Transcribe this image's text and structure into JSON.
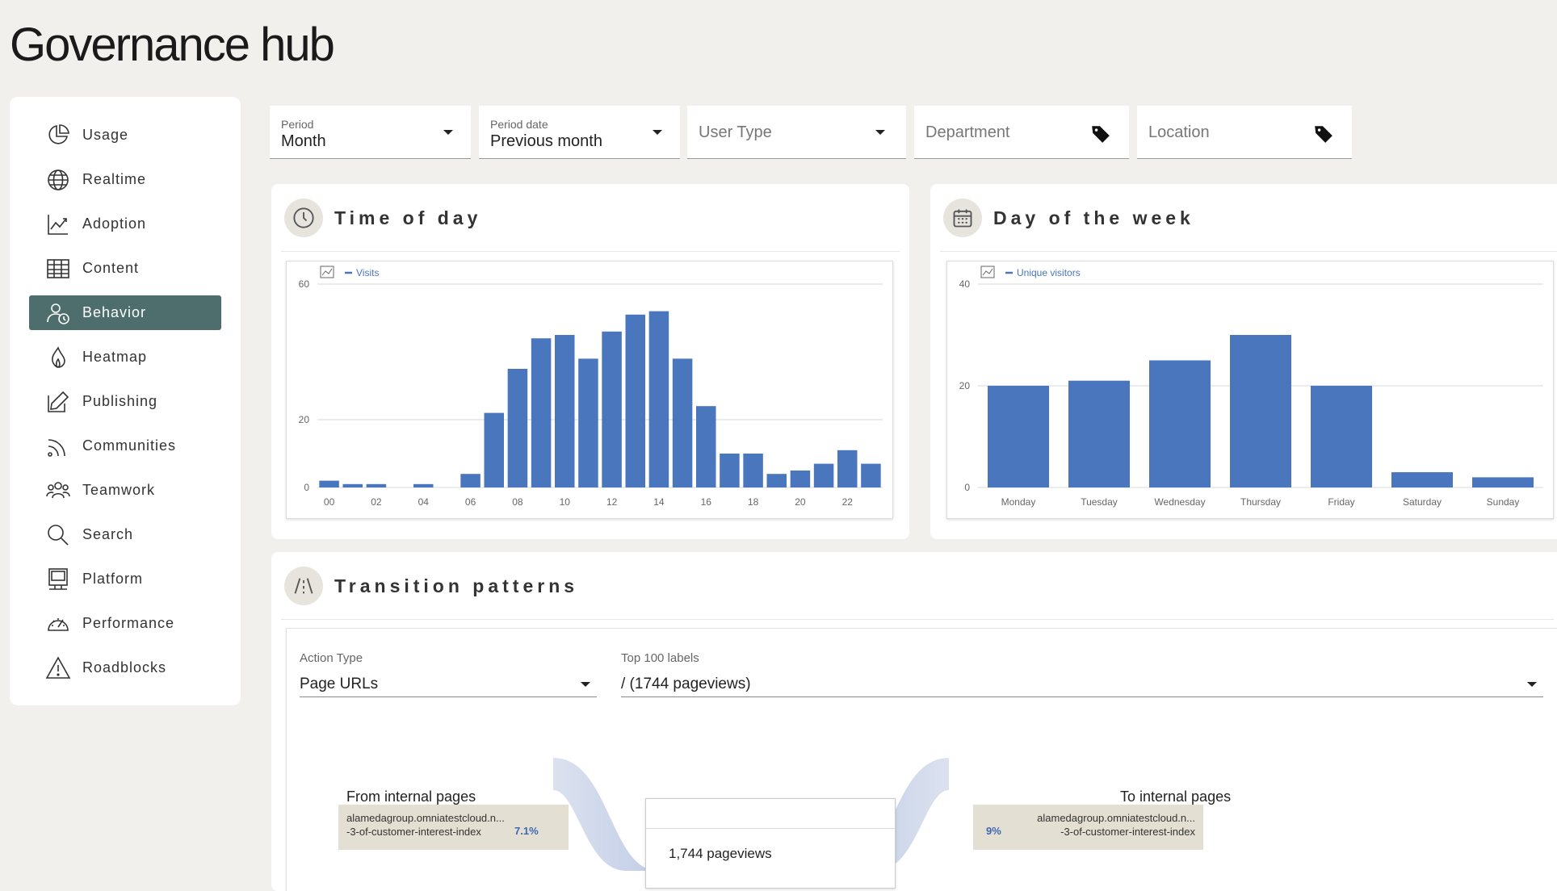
{
  "app": {
    "title": "Governance hub"
  },
  "sidebar": {
    "items": [
      {
        "label": "Usage",
        "icon": "pie-chart-icon",
        "active": false
      },
      {
        "label": "Realtime",
        "icon": "globe-icon",
        "active": false
      },
      {
        "label": "Adoption",
        "icon": "trend-chart-icon",
        "active": false
      },
      {
        "label": "Content",
        "icon": "table-icon",
        "active": false
      },
      {
        "label": "Behavior",
        "icon": "user-clock-icon",
        "active": true
      },
      {
        "label": "Heatmap",
        "icon": "flame-icon",
        "active": false
      },
      {
        "label": "Publishing",
        "icon": "edit-icon",
        "active": false
      },
      {
        "label": "Communities",
        "icon": "rss-icon",
        "active": false
      },
      {
        "label": "Teamwork",
        "icon": "group-icon",
        "active": false
      },
      {
        "label": "Search",
        "icon": "search-icon",
        "active": false
      },
      {
        "label": "Platform",
        "icon": "monitor-icon",
        "active": false
      },
      {
        "label": "Performance",
        "icon": "gauge-icon",
        "active": false
      },
      {
        "label": "Roadblocks",
        "icon": "warning-icon",
        "active": false
      }
    ]
  },
  "filters": {
    "period": {
      "label": "Period",
      "value": "Month"
    },
    "period_date": {
      "label": "Period date",
      "value": "Previous month"
    },
    "user_type": {
      "placeholder": "User Type"
    },
    "department": {
      "placeholder": "Department"
    },
    "location": {
      "placeholder": "Location"
    }
  },
  "time_of_day": {
    "title": "Time of day",
    "chart_data": {
      "type": "bar",
      "legend": "Visits",
      "categories": [
        "00",
        "01",
        "02",
        "03",
        "04",
        "05",
        "06",
        "07",
        "08",
        "09",
        "10",
        "11",
        "12",
        "13",
        "14",
        "15",
        "16",
        "17",
        "18",
        "19",
        "20",
        "21",
        "22",
        "23"
      ],
      "tick_labels": [
        "00",
        "02",
        "04",
        "06",
        "08",
        "10",
        "12",
        "14",
        "16",
        "18",
        "20",
        "22"
      ],
      "values": [
        2,
        1,
        1,
        0,
        1,
        0,
        4,
        22,
        35,
        44,
        45,
        38,
        46,
        51,
        52,
        38,
        24,
        10,
        10,
        4,
        5,
        7,
        11,
        7
      ],
      "y_ticks": [
        "0",
        "20",
        "60"
      ],
      "ylim": [
        0,
        60
      ],
      "color": "#4a76be"
    }
  },
  "day_of_week": {
    "title": "Day of the week",
    "chart_data": {
      "type": "bar",
      "legend": "Unique visitors",
      "categories": [
        "Monday",
        "Tuesday",
        "Wednesday",
        "Thursday",
        "Friday",
        "Saturday",
        "Sunday"
      ],
      "values": [
        20,
        21,
        25,
        30,
        20,
        3,
        2
      ],
      "y_ticks": [
        "0",
        "20",
        "40"
      ],
      "ylim": [
        0,
        40
      ],
      "color": "#4a76be"
    }
  },
  "transition": {
    "title": "Transition patterns",
    "action_type": {
      "label": "Action Type",
      "value": "Page URLs"
    },
    "top_labels": {
      "label": "Top 100 labels",
      "value": "/ (1744 pageviews)"
    },
    "from_title": "From internal pages",
    "to_title": "To internal pages",
    "from_item": {
      "url1": "alamedagroup.omniatestcloud.n...",
      "url2": "-3-of-customer-interest-index",
      "pct": "7.1%"
    },
    "to_item": {
      "url1": "alamedagroup.omniatestcloud.n...",
      "url2": "-3-of-customer-interest-index",
      "pct": "9%"
    },
    "center": {
      "pageviews": "1,744 pageviews"
    }
  }
}
